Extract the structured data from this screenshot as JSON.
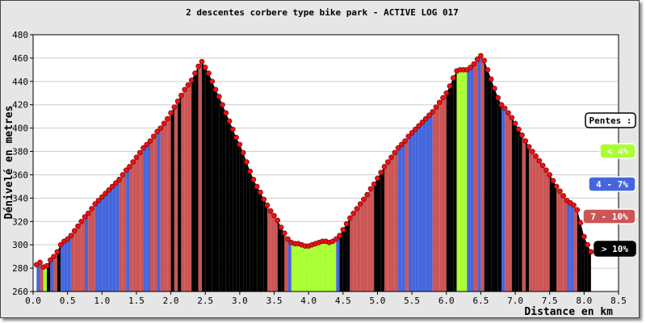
{
  "chart_data": {
    "type": "area",
    "title": "2 descentes corbere type bike park - ACTIVE LOG 017",
    "xlabel": "Distance en km",
    "ylabel": "Dénivelé en metres",
    "xlim": [
      0.0,
      8.5
    ],
    "ylim": [
      260,
      480
    ],
    "x_ticks": [
      "0.0",
      "0.5",
      "1.0",
      "1.5",
      "2.0",
      "2.5",
      "3.0",
      "3.5",
      "4.0",
      "4.5",
      "5.0",
      "5.5",
      "6.0",
      "6.5",
      "7.0",
      "7.5",
      "8.0",
      "8.5"
    ],
    "y_ticks": [
      "260",
      "280",
      "300",
      "320",
      "340",
      "360",
      "380",
      "400",
      "420",
      "440",
      "460",
      "480"
    ],
    "grid": true,
    "legend_title": "Pentes :",
    "legend_placement": "right",
    "legend": [
      {
        "label": "< 4%",
        "color": "#aaff33",
        "text_color": "#ffffff"
      },
      {
        "label": "4 - 7%",
        "color": "#4466dd",
        "text_color": "#ffffff"
      },
      {
        "label": "7 - 10%",
        "color": "#cc5555",
        "text_color": "#ffffff"
      },
      {
        "label": "> 10%",
        "color": "#000000",
        "text_color": "#ffffff"
      }
    ],
    "marker_color": "#ee1111",
    "points": [
      [
        0.05,
        283
      ],
      [
        0.1,
        285
      ],
      [
        0.15,
        281
      ],
      [
        0.2,
        282
      ],
      [
        0.25,
        287
      ],
      [
        0.3,
        290
      ],
      [
        0.35,
        294
      ],
      [
        0.4,
        300
      ],
      [
        0.45,
        303
      ],
      [
        0.5,
        305
      ],
      [
        0.55,
        308
      ],
      [
        0.6,
        312
      ],
      [
        0.65,
        316
      ],
      [
        0.7,
        320
      ],
      [
        0.75,
        324
      ],
      [
        0.8,
        327
      ],
      [
        0.85,
        331
      ],
      [
        0.9,
        335
      ],
      [
        0.95,
        338
      ],
      [
        1.0,
        341
      ],
      [
        1.05,
        344
      ],
      [
        1.1,
        347
      ],
      [
        1.15,
        350
      ],
      [
        1.2,
        353
      ],
      [
        1.25,
        356
      ],
      [
        1.3,
        360
      ],
      [
        1.35,
        364
      ],
      [
        1.4,
        367
      ],
      [
        1.45,
        371
      ],
      [
        1.5,
        375
      ],
      [
        1.55,
        379
      ],
      [
        1.6,
        383
      ],
      [
        1.65,
        386
      ],
      [
        1.7,
        389
      ],
      [
        1.75,
        393
      ],
      [
        1.8,
        397
      ],
      [
        1.85,
        400
      ],
      [
        1.9,
        404
      ],
      [
        1.95,
        408
      ],
      [
        2.0,
        413
      ],
      [
        2.05,
        418
      ],
      [
        2.1,
        423
      ],
      [
        2.15,
        428
      ],
      [
        2.2,
        433
      ],
      [
        2.25,
        437
      ],
      [
        2.3,
        441
      ],
      [
        2.35,
        447
      ],
      [
        2.4,
        453
      ],
      [
        2.45,
        457
      ],
      [
        2.5,
        452
      ],
      [
        2.55,
        447
      ],
      [
        2.6,
        440
      ],
      [
        2.65,
        433
      ],
      [
        2.7,
        427
      ],
      [
        2.75,
        420
      ],
      [
        2.8,
        413
      ],
      [
        2.85,
        406
      ],
      [
        2.9,
        399
      ],
      [
        2.95,
        392
      ],
      [
        3.0,
        386
      ],
      [
        3.05,
        379
      ],
      [
        3.1,
        371
      ],
      [
        3.15,
        363
      ],
      [
        3.2,
        356
      ],
      [
        3.25,
        350
      ],
      [
        3.3,
        345
      ],
      [
        3.35,
        339
      ],
      [
        3.4,
        334
      ],
      [
        3.45,
        329
      ],
      [
        3.5,
        325
      ],
      [
        3.55,
        321
      ],
      [
        3.6,
        315
      ],
      [
        3.65,
        310
      ],
      [
        3.7,
        305
      ],
      [
        3.75,
        302
      ],
      [
        3.8,
        301
      ],
      [
        3.85,
        301
      ],
      [
        3.9,
        300
      ],
      [
        3.95,
        299
      ],
      [
        4.0,
        299
      ],
      [
        4.05,
        300
      ],
      [
        4.1,
        301
      ],
      [
        4.15,
        302
      ],
      [
        4.2,
        303
      ],
      [
        4.25,
        303
      ],
      [
        4.3,
        302
      ],
      [
        4.35,
        303
      ],
      [
        4.4,
        305
      ],
      [
        4.45,
        308
      ],
      [
        4.5,
        313
      ],
      [
        4.55,
        318
      ],
      [
        4.6,
        323
      ],
      [
        4.65,
        327
      ],
      [
        4.7,
        331
      ],
      [
        4.75,
        335
      ],
      [
        4.8,
        339
      ],
      [
        4.85,
        343
      ],
      [
        4.9,
        348
      ],
      [
        4.95,
        352
      ],
      [
        5.0,
        357
      ],
      [
        5.05,
        362
      ],
      [
        5.1,
        367
      ],
      [
        5.15,
        371
      ],
      [
        5.2,
        375
      ],
      [
        5.25,
        379
      ],
      [
        5.3,
        383
      ],
      [
        5.35,
        386
      ],
      [
        5.4,
        389
      ],
      [
        5.45,
        393
      ],
      [
        5.5,
        396
      ],
      [
        5.55,
        399
      ],
      [
        5.6,
        402
      ],
      [
        5.65,
        405
      ],
      [
        5.7,
        408
      ],
      [
        5.75,
        411
      ],
      [
        5.8,
        414
      ],
      [
        5.85,
        418
      ],
      [
        5.9,
        422
      ],
      [
        5.95,
        426
      ],
      [
        6.0,
        430
      ],
      [
        6.05,
        436
      ],
      [
        6.1,
        443
      ],
      [
        6.15,
        449
      ],
      [
        6.2,
        450
      ],
      [
        6.25,
        450
      ],
      [
        6.3,
        450
      ],
      [
        6.35,
        452
      ],
      [
        6.4,
        455
      ],
      [
        6.45,
        459
      ],
      [
        6.5,
        462
      ],
      [
        6.55,
        458
      ],
      [
        6.6,
        450
      ],
      [
        6.65,
        442
      ],
      [
        6.7,
        434
      ],
      [
        6.75,
        426
      ],
      [
        6.8,
        420
      ],
      [
        6.85,
        417
      ],
      [
        6.9,
        413
      ],
      [
        6.95,
        409
      ],
      [
        7.0,
        404
      ],
      [
        7.05,
        399
      ],
      [
        7.1,
        394
      ],
      [
        7.15,
        389
      ],
      [
        7.2,
        384
      ],
      [
        7.25,
        380
      ],
      [
        7.3,
        376
      ],
      [
        7.35,
        372
      ],
      [
        7.4,
        368
      ],
      [
        7.45,
        364
      ],
      [
        7.5,
        360
      ],
      [
        7.55,
        355
      ],
      [
        7.6,
        350
      ],
      [
        7.65,
        346
      ],
      [
        7.7,
        342
      ],
      [
        7.75,
        338
      ],
      [
        7.8,
        336
      ],
      [
        7.85,
        334
      ],
      [
        7.9,
        330
      ],
      [
        7.95,
        319
      ],
      [
        8.0,
        307
      ],
      [
        8.05,
        300
      ],
      [
        8.1,
        294
      ]
    ]
  }
}
